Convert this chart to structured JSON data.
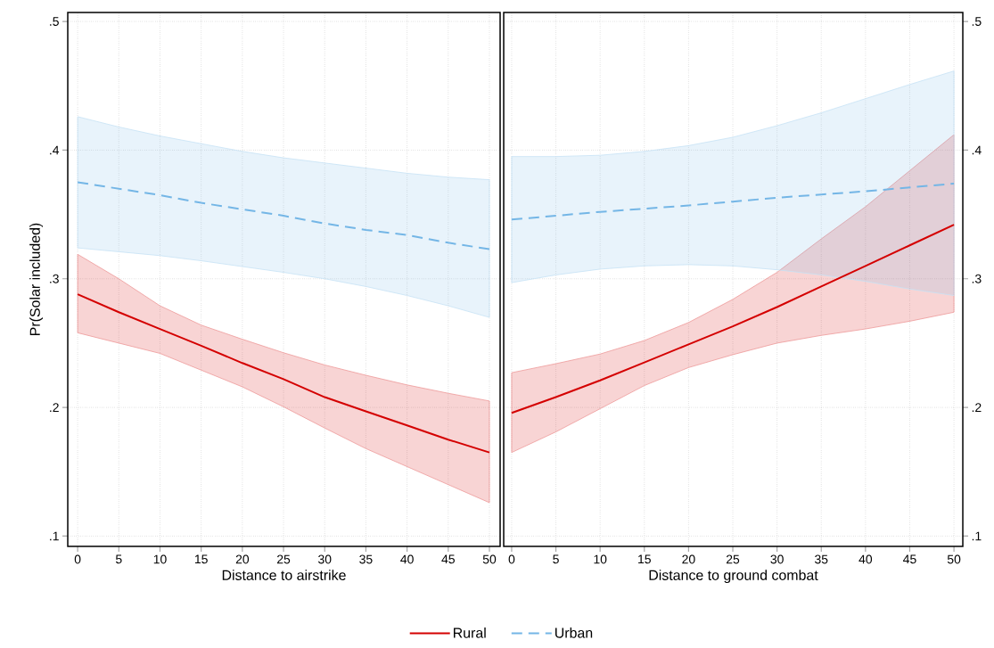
{
  "chart_data": [
    {
      "type": "line",
      "xlabel": "Distance to airstrike",
      "ylabel": "Pr(Solar included)",
      "x": [
        0,
        5,
        10,
        15,
        20,
        25,
        30,
        35,
        40,
        45,
        50
      ],
      "xlim": [
        -1.2,
        51.3
      ],
      "ylim": [
        0.092,
        0.507
      ],
      "xticks": [
        0,
        5,
        10,
        15,
        20,
        25,
        30,
        35,
        40,
        45,
        50
      ],
      "yticks": [
        {
          "value": 0.1,
          "label": ".1"
        },
        {
          "value": 0.2,
          "label": ".2"
        },
        {
          "value": 0.3,
          "label": ".3"
        },
        {
          "value": 0.4,
          "label": ".4"
        },
        {
          "value": 0.5,
          "label": ".5"
        }
      ],
      "grid": true,
      "legend": "bottom",
      "series": [
        {
          "name": "Rural",
          "color": "#d40000",
          "line_style": "solid",
          "values": [
            0.288,
            0.274,
            0.261,
            0.248,
            0.2345,
            0.222,
            0.208,
            0.197,
            0.186,
            0.175,
            0.165
          ],
          "lower": [
            0.258,
            0.25,
            0.242,
            0.229,
            0.216,
            0.2005,
            0.184,
            0.168,
            0.154,
            0.14,
            0.126
          ],
          "upper": [
            0.319,
            0.3,
            0.279,
            0.264,
            0.253,
            0.2425,
            0.233,
            0.225,
            0.2175,
            0.211,
            0.205
          ]
        },
        {
          "name": "Urban",
          "color": "#74b6e6",
          "line_style": "dashed",
          "values": [
            0.375,
            0.37,
            0.365,
            0.359,
            0.354,
            0.349,
            0.343,
            0.338,
            0.334,
            0.328,
            0.323
          ],
          "lower": [
            0.324,
            0.321,
            0.318,
            0.314,
            0.3095,
            0.305,
            0.3,
            0.294,
            0.287,
            0.279,
            0.27
          ],
          "upper": [
            0.426,
            0.418,
            0.411,
            0.405,
            0.399,
            0.394,
            0.39,
            0.386,
            0.382,
            0.379,
            0.377
          ]
        }
      ]
    },
    {
      "type": "line",
      "xlabel": "Distance to ground combat",
      "x": [
        0,
        5,
        10,
        15,
        20,
        25,
        30,
        35,
        40,
        45,
        50
      ],
      "xlim": [
        -0.9,
        51.0
      ],
      "ylim": [
        0.092,
        0.507
      ],
      "xticks": [
        0,
        5,
        10,
        15,
        20,
        25,
        30,
        35,
        40,
        45,
        50
      ],
      "yticks": [
        {
          "value": 0.1,
          "label": ".1"
        },
        {
          "value": 0.2,
          "label": ".2"
        },
        {
          "value": 0.3,
          "label": ".3"
        },
        {
          "value": 0.4,
          "label": ".4"
        },
        {
          "value": 0.5,
          "label": ".5"
        }
      ],
      "grid": true,
      "series": [
        {
          "color": "#d40000",
          "line_style": "solid",
          "values": [
            0.1957,
            0.208,
            0.221,
            0.235,
            0.249,
            0.263,
            0.278,
            0.294,
            0.31,
            0.326,
            0.342
          ],
          "lower": [
            0.165,
            0.181,
            0.199,
            0.217,
            0.231,
            0.241,
            0.25,
            0.256,
            0.261,
            0.267,
            0.274
          ],
          "upper": [
            0.227,
            0.234,
            0.2415,
            0.252,
            0.266,
            0.284,
            0.305,
            0.331,
            0.356,
            0.384,
            0.412
          ]
        },
        {
          "color": "#74b6e6",
          "line_style": "dashed",
          "values": [
            0.346,
            0.349,
            0.352,
            0.3545,
            0.357,
            0.36,
            0.363,
            0.3655,
            0.368,
            0.371,
            0.374
          ],
          "lower": [
            0.297,
            0.303,
            0.3075,
            0.31,
            0.311,
            0.31,
            0.307,
            0.303,
            0.298,
            0.292,
            0.287
          ],
          "upper": [
            0.395,
            0.395,
            0.396,
            0.399,
            0.4035,
            0.41,
            0.419,
            0.429,
            0.44,
            0.451,
            0.4615
          ]
        }
      ]
    }
  ]
}
